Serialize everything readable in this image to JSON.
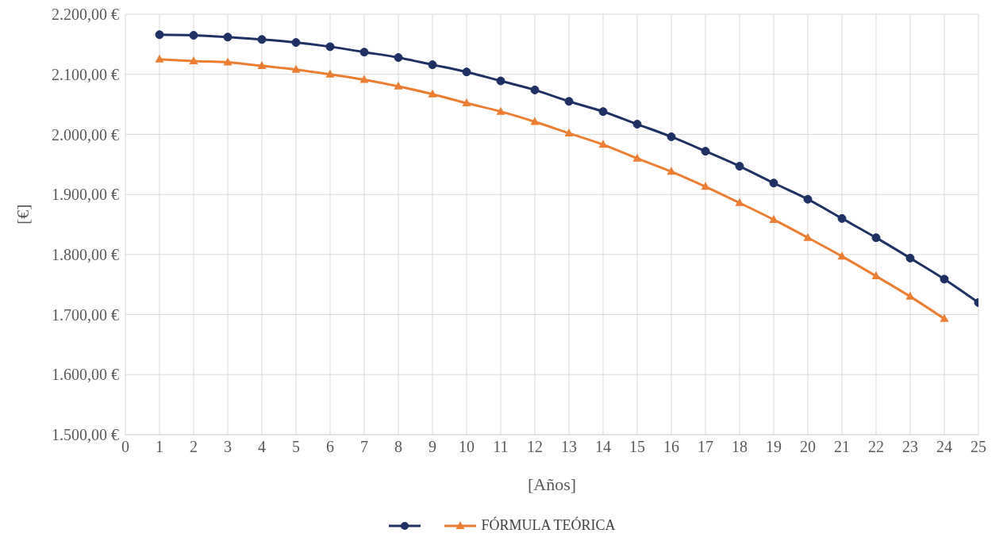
{
  "chart_data": {
    "type": "line",
    "xlabel": "[Años]",
    "ylabel": "[€]",
    "x": [
      1,
      2,
      3,
      4,
      5,
      6,
      7,
      8,
      9,
      10,
      11,
      12,
      13,
      14,
      15,
      16,
      17,
      18,
      19,
      20,
      21,
      22,
      23,
      24,
      25
    ],
    "series": [
      {
        "color": "#1f3164",
        "marker": "circle",
        "values": [
          2166,
          2165,
          2162,
          2158,
          2153,
          2146,
          2137,
          2128,
          2116,
          2104,
          2089,
          2074,
          2055,
          2038,
          2017,
          1996,
          1972,
          1947,
          1919,
          1892,
          1860,
          1828,
          1794,
          1759,
          1720
        ]
      },
      {
        "name": "FÓRMULA TEÓRICA",
        "color": "#ed7d31",
        "marker": "triangle",
        "values": [
          2125,
          2122,
          2120,
          2114,
          2108,
          2100,
          2091,
          2080,
          2067,
          2052,
          2038,
          2021,
          2002,
          1983,
          1960,
          1938,
          1913,
          1886,
          1858,
          1828,
          1797,
          1764,
          1730,
          1693,
          null
        ]
      }
    ],
    "xlim": [
      0,
      25
    ],
    "xticks": [
      0,
      1,
      2,
      3,
      4,
      5,
      6,
      7,
      8,
      9,
      10,
      11,
      12,
      13,
      14,
      15,
      16,
      17,
      18,
      19,
      20,
      21,
      22,
      23,
      24,
      25
    ],
    "ylim": [
      1500,
      2200
    ],
    "yticks": [
      {
        "value": 1500,
        "label": "1.500,00 €"
      },
      {
        "value": 1600,
        "label": "1.600,00 €"
      },
      {
        "value": 1700,
        "label": "1.700,00 €"
      },
      {
        "value": 1800,
        "label": "1.800,00 €"
      },
      {
        "value": 1900,
        "label": "1.900,00 €"
      },
      {
        "value": 2000,
        "label": "2.000,00 €"
      },
      {
        "value": 2100,
        "label": "2.100,00 €"
      },
      {
        "value": 2200,
        "label": "2.200,00 €"
      }
    ],
    "grid": true,
    "legend": "bottom",
    "line_style": "solid"
  }
}
